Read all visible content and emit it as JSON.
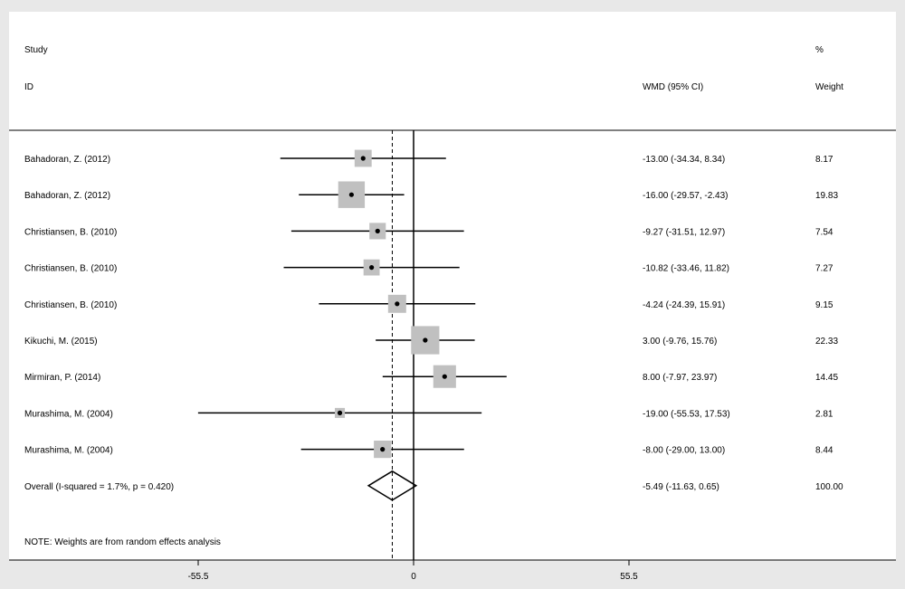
{
  "headers": {
    "study_line1": "Study",
    "study_line2": "ID",
    "effect": "WMD (95% CI)",
    "weight_line1": "%",
    "weight_line2": "Weight"
  },
  "note": "NOTE: Weights are from random effects analysis",
  "chart_data": {
    "type": "forest",
    "effect_measure": "WMD (95% CI)",
    "studies": [
      {
        "label": "Bahadoran, Z.  (2012)",
        "est": -13.0,
        "lo": -34.34,
        "hi": 8.34,
        "text": "-13.00 (-34.34, 8.34)",
        "weight": "8.17"
      },
      {
        "label": "Bahadoran, Z.  (2012)",
        "est": -16.0,
        "lo": -29.57,
        "hi": -2.43,
        "text": "-16.00 (-29.57, -2.43)",
        "weight": "19.83"
      },
      {
        "label": "Christiansen, B. (2010)",
        "est": -9.27,
        "lo": -31.51,
        "hi": 12.97,
        "text": "-9.27 (-31.51, 12.97)",
        "weight": "7.54"
      },
      {
        "label": "Christiansen, B. (2010)",
        "est": -10.82,
        "lo": -33.46,
        "hi": 11.82,
        "text": "-10.82 (-33.46, 11.82)",
        "weight": "7.27"
      },
      {
        "label": "Christiansen, B. (2010)",
        "est": -4.24,
        "lo": -24.39,
        "hi": 15.91,
        "text": "-4.24 (-24.39, 15.91)",
        "weight": "9.15"
      },
      {
        "label": "Kikuchi, M. (2015)",
        "est": 3.0,
        "lo": -9.76,
        "hi": 15.76,
        "text": "3.00 (-9.76, 15.76)",
        "weight": "22.33"
      },
      {
        "label": "Mirmiran, P. (2014)",
        "est": 8.0,
        "lo": -7.97,
        "hi": 23.97,
        "text": "8.00 (-7.97, 23.97)",
        "weight": "14.45"
      },
      {
        "label": "Murashima, M. (2004)",
        "est": -19.0,
        "lo": -55.53,
        "hi": 17.53,
        "text": "-19.00 (-55.53, 17.53)",
        "weight": "2.81"
      },
      {
        "label": "Murashima, M. (2004)",
        "est": -8.0,
        "lo": -29.0,
        "hi": 13.0,
        "text": "-8.00 (-29.00, 13.00)",
        "weight": "8.44"
      }
    ],
    "overall": {
      "label": "Overall  (I-squared = 1.7%, p = 0.420)",
      "est": -5.49,
      "lo": -11.63,
      "hi": 0.65,
      "text": "-5.49 (-11.63, 0.65)",
      "weight": "100.00"
    },
    "x_ticks": [
      {
        "value": -55.5,
        "label": "-55.5"
      },
      {
        "value": 0,
        "label": "0"
      },
      {
        "value": 55.5,
        "label": "55.5"
      }
    ],
    "xlim": [
      -100,
      125
    ],
    "null_line": 0,
    "overall_line": -5.49,
    "marker_color": "#c0c0c0",
    "line_color": "#000000"
  }
}
